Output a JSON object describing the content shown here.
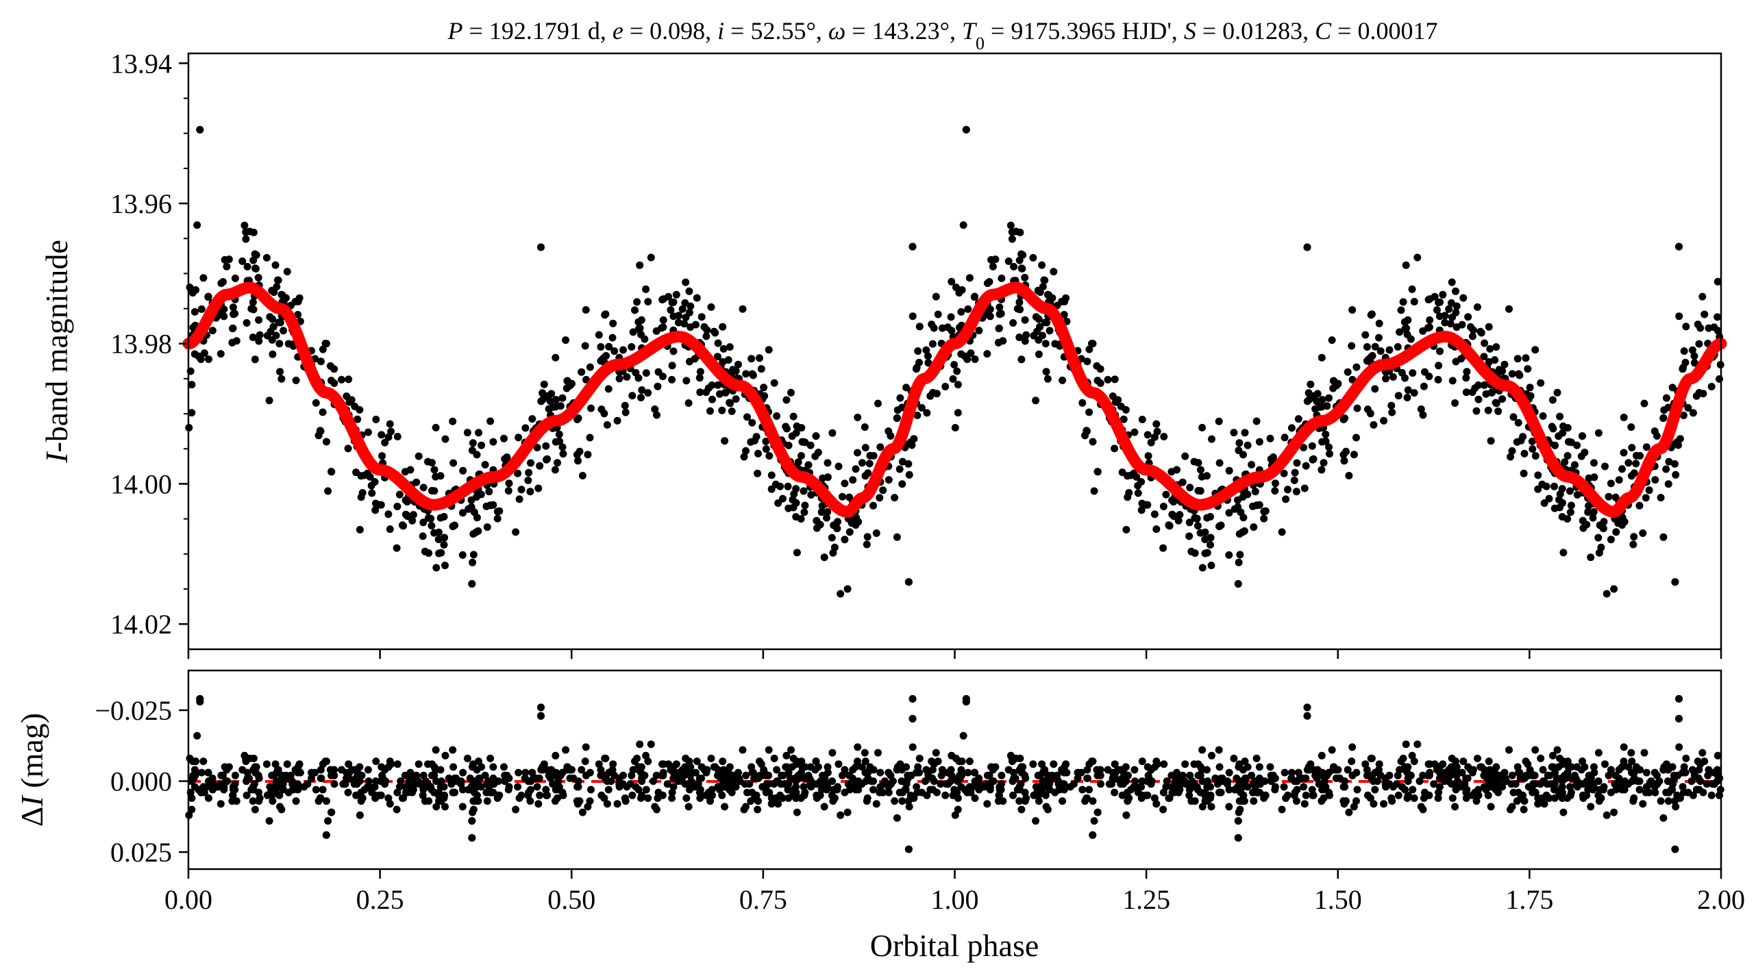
{
  "chart_data": {
    "type": "scatter",
    "title": "P = 192.1791 d, e = 0.098, i = 52.55°, ω = 143.23°, T0 = 9175.3965 HJD', S = 0.01283, C = 0.00017",
    "title_parts": {
      "P_sym": "P",
      "P_val": " = 192.1791 d, ",
      "e_sym": "e",
      "e_val": " = 0.098, ",
      "i_sym": "i",
      "i_val": " = 52.55°, ",
      "w_sym": "ω",
      "w_val": " = 143.23°, ",
      "T_sym": "T",
      "T_sub": "0",
      "T_val": " = 9175.3965 HJD', ",
      "S_sym": "S",
      "S_val": " = 0.01283, ",
      "C_sym": "C",
      "C_val": " = 0.00017"
    },
    "xlabel": "Orbital phase",
    "xlim": [
      0.0,
      2.0
    ],
    "xticks": [
      "0.00",
      "0.25",
      "0.50",
      "0.75",
      "1.00",
      "1.25",
      "1.50",
      "1.75",
      "2.00"
    ],
    "xtick_values": [
      0,
      0.25,
      0.5,
      0.75,
      1.0,
      1.25,
      1.5,
      1.75,
      2.0
    ],
    "panels": [
      {
        "name": "light-curve",
        "ylabel_italic": "I",
        "ylabel_rest": "-band magnitude",
        "ylim": [
          14.0236,
          13.9386
        ],
        "inverted_y": true,
        "yticks": [
          "13.94",
          "13.96",
          "13.98",
          "14.00",
          "14.02"
        ],
        "ytick_values": [
          13.94,
          13.96,
          13.98,
          14.0,
          14.02
        ],
        "series": [
          {
            "type": "scatter",
            "color": "#000000",
            "summary": "Folded I-band observations, approximately 800 points repeated over two cycles"
          },
          {
            "type": "line",
            "color": "#ff0000",
            "summary": "Best-fit ellipsoidal model"
          }
        ],
        "model_curve": {
          "phase": [
            0.0,
            0.05,
            0.08,
            0.12,
            0.18,
            0.25,
            0.32,
            0.4,
            0.48,
            0.56,
            0.64,
            0.72,
            0.8,
            0.86,
            0.88,
            0.92,
            0.96,
            1.0
          ],
          "mag": [
            13.98,
            13.973,
            13.972,
            13.975,
            13.987,
            13.998,
            14.003,
            13.999,
            13.991,
            13.983,
            13.979,
            13.986,
            13.999,
            14.004,
            14.002,
            13.995,
            13.985,
            13.98
          ]
        },
        "scatter_model": {
          "n_per_cycle": 800,
          "sigma_mag": 0.0045
        },
        "outliers": [
          {
            "x": 0.015,
            "y": 13.949
          },
          {
            "x": 1.015,
            "y": 13.949
          },
          {
            "x": 0.37,
            "y": 14.014
          },
          {
            "x": 1.37,
            "y": 14.014
          },
          {
            "x": 0.94,
            "y": 14.014
          },
          {
            "x": 1.94,
            "y": 14.014
          },
          {
            "x": 0.945,
            "y": 13.966
          },
          {
            "x": 1.945,
            "y": 13.966
          },
          {
            "x": 0.46,
            "y": 13.966
          },
          {
            "x": 1.46,
            "y": 13.966
          }
        ]
      },
      {
        "name": "residuals",
        "ylabel_italic": "I",
        "ylabel_prefix": "Δ",
        "ylabel_rest": " (mag)",
        "ylim": [
          0.031,
          -0.039
        ],
        "inverted_y": true,
        "yticks": [
          "−0.025",
          "0.000",
          "0.025"
        ],
        "ytick_values": [
          -0.025,
          0.0,
          0.025
        ],
        "series": [
          {
            "type": "scatter",
            "color": "#000000",
            "summary": "Residuals from model, approximately 800 points repeated over two cycles"
          },
          {
            "type": "hline",
            "y": 0.0,
            "color": "#ff0000",
            "style": "dashed"
          }
        ],
        "outliers": [
          {
            "x": 0.015,
            "y": -0.028
          },
          {
            "x": 1.015,
            "y": -0.028
          },
          {
            "x": 0.945,
            "y": -0.029
          },
          {
            "x": 1.945,
            "y": -0.029
          },
          {
            "x": 0.37,
            "y": 0.02
          },
          {
            "x": 1.37,
            "y": 0.02
          },
          {
            "x": 0.18,
            "y": 0.019
          },
          {
            "x": 1.18,
            "y": 0.019
          },
          {
            "x": 0.46,
            "y": -0.023
          },
          {
            "x": 1.46,
            "y": -0.023
          }
        ]
      }
    ],
    "grid": false
  }
}
